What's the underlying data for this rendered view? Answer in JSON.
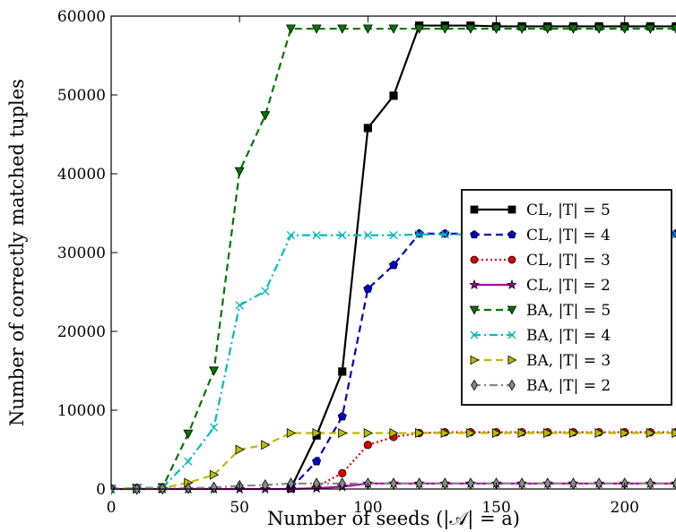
{
  "chart_data": {
    "type": "line",
    "title": "",
    "xlabel": "Number of seeds (|𝒜| = a)",
    "ylabel": "Number of correctly matched tuples",
    "xlim": [
      0,
      220
    ],
    "ylim": [
      0,
      60000
    ],
    "xticks": [
      0,
      50,
      100,
      150,
      200
    ],
    "yticks": [
      0,
      10000,
      20000,
      30000,
      40000,
      50000,
      60000
    ],
    "grid": false,
    "legend_position": "center-right",
    "series": [
      {
        "name": "CL, |T| = 5",
        "color": "#000000",
        "dash": "solid",
        "marker": "square",
        "points": [
          [
            70,
            100
          ],
          [
            80,
            6800
          ],
          [
            90,
            14900
          ],
          [
            100,
            45800
          ],
          [
            110,
            49900
          ],
          [
            120,
            58800
          ],
          [
            130,
            58800
          ],
          [
            140,
            58800
          ],
          [
            150,
            58700
          ],
          [
            160,
            58700
          ],
          [
            170,
            58700
          ],
          [
            180,
            58700
          ],
          [
            190,
            58700
          ],
          [
            200,
            58700
          ],
          [
            210,
            58700
          ],
          [
            220,
            58700
          ]
        ]
      },
      {
        "name": "CL, |T| = 4",
        "color": "#0000cc",
        "dash": "dashed",
        "marker": "pentagon",
        "points": [
          [
            70,
            100
          ],
          [
            80,
            3500
          ],
          [
            90,
            9200
          ],
          [
            100,
            25400
          ],
          [
            110,
            28400
          ],
          [
            120,
            32400
          ],
          [
            130,
            32400
          ],
          [
            140,
            32400
          ],
          [
            150,
            32400
          ],
          [
            160,
            32400
          ],
          [
            170,
            32400
          ],
          [
            180,
            32400
          ],
          [
            190,
            32400
          ],
          [
            200,
            32400
          ],
          [
            210,
            32400
          ],
          [
            220,
            32400
          ]
        ]
      },
      {
        "name": "CL, |T| = 3",
        "color": "#dd0000",
        "dash": "dotted",
        "marker": "circle",
        "points": [
          [
            80,
            300
          ],
          [
            90,
            2000
          ],
          [
            100,
            5600
          ],
          [
            110,
            6600
          ],
          [
            120,
            7100
          ],
          [
            130,
            7200
          ],
          [
            140,
            7200
          ],
          [
            150,
            7200
          ],
          [
            160,
            7200
          ],
          [
            170,
            7200
          ],
          [
            180,
            7200
          ],
          [
            190,
            7200
          ],
          [
            200,
            7200
          ],
          [
            210,
            7200
          ],
          [
            220,
            7200
          ]
        ]
      },
      {
        "name": "CL, |T| = 2",
        "color": "#aa00aa",
        "dash": "solid",
        "marker": "star",
        "points": [
          [
            0,
            0
          ],
          [
            10,
            0
          ],
          [
            20,
            0
          ],
          [
            30,
            0
          ],
          [
            40,
            0
          ],
          [
            50,
            0
          ],
          [
            60,
            0
          ],
          [
            70,
            0
          ],
          [
            80,
            100
          ],
          [
            90,
            300
          ],
          [
            100,
            700
          ],
          [
            110,
            700
          ],
          [
            120,
            700
          ],
          [
            130,
            700
          ],
          [
            140,
            700
          ],
          [
            150,
            700
          ],
          [
            160,
            700
          ],
          [
            170,
            700
          ],
          [
            180,
            700
          ],
          [
            190,
            700
          ],
          [
            200,
            700
          ],
          [
            210,
            700
          ],
          [
            220,
            700
          ]
        ]
      },
      {
        "name": "BA, |T| = 5",
        "color": "#007700",
        "dash": "dashed",
        "marker": "triangle-down",
        "points": [
          [
            0,
            0
          ],
          [
            10,
            100
          ],
          [
            20,
            200
          ],
          [
            30,
            7000
          ],
          [
            40,
            15000
          ],
          [
            50,
            40300
          ],
          [
            60,
            47400
          ],
          [
            70,
            58400
          ],
          [
            80,
            58400
          ],
          [
            90,
            58400
          ],
          [
            100,
            58400
          ],
          [
            110,
            58400
          ],
          [
            120,
            58400
          ],
          [
            130,
            58400
          ],
          [
            140,
            58400
          ],
          [
            150,
            58400
          ],
          [
            160,
            58400
          ],
          [
            170,
            58400
          ],
          [
            180,
            58400
          ],
          [
            190,
            58400
          ],
          [
            200,
            58400
          ],
          [
            210,
            58400
          ],
          [
            220,
            58400
          ]
        ]
      },
      {
        "name": "BA, |T| = 4",
        "color": "#00bbbb",
        "dash": "dashdot",
        "marker": "x",
        "points": [
          [
            0,
            0
          ],
          [
            10,
            100
          ],
          [
            20,
            200
          ],
          [
            30,
            3500
          ],
          [
            40,
            7800
          ],
          [
            50,
            23300
          ],
          [
            60,
            25100
          ],
          [
            70,
            32200
          ],
          [
            80,
            32200
          ],
          [
            90,
            32200
          ],
          [
            100,
            32200
          ],
          [
            110,
            32200
          ],
          [
            120,
            32300
          ],
          [
            130,
            32300
          ],
          [
            140,
            32300
          ],
          [
            150,
            32300
          ],
          [
            160,
            32300
          ],
          [
            170,
            32300
          ],
          [
            180,
            32300
          ],
          [
            190,
            32300
          ],
          [
            200,
            32300
          ],
          [
            210,
            32300
          ],
          [
            220,
            32300
          ]
        ]
      },
      {
        "name": "BA, |T| = 3",
        "color": "#bbbb00",
        "dash": "dashed",
        "marker": "triangle-right",
        "points": [
          [
            0,
            0
          ],
          [
            10,
            50
          ],
          [
            20,
            100
          ],
          [
            30,
            800
          ],
          [
            40,
            1800
          ],
          [
            50,
            5000
          ],
          [
            60,
            5600
          ],
          [
            70,
            7100
          ],
          [
            80,
            7100
          ],
          [
            90,
            7100
          ],
          [
            100,
            7100
          ],
          [
            110,
            7100
          ],
          [
            120,
            7100
          ],
          [
            130,
            7100
          ],
          [
            140,
            7100
          ],
          [
            150,
            7100
          ],
          [
            160,
            7100
          ],
          [
            170,
            7100
          ],
          [
            180,
            7100
          ],
          [
            190,
            7100
          ],
          [
            200,
            7100
          ],
          [
            210,
            7100
          ],
          [
            220,
            7100
          ]
        ]
      },
      {
        "name": "BA, |T| = 2",
        "color": "#888888",
        "dash": "dashdot",
        "marker": "diamond",
        "points": [
          [
            0,
            0
          ],
          [
            10,
            0
          ],
          [
            20,
            50
          ],
          [
            30,
            100
          ],
          [
            40,
            200
          ],
          [
            50,
            400
          ],
          [
            60,
            500
          ],
          [
            70,
            700
          ],
          [
            80,
            700
          ],
          [
            90,
            700
          ],
          [
            100,
            700
          ],
          [
            110,
            700
          ],
          [
            120,
            700
          ],
          [
            130,
            700
          ],
          [
            140,
            700
          ],
          [
            150,
            700
          ],
          [
            160,
            700
          ],
          [
            170,
            700
          ],
          [
            180,
            700
          ],
          [
            190,
            700
          ],
          [
            200,
            700
          ],
          [
            210,
            700
          ],
          [
            220,
            700
          ]
        ]
      }
    ]
  }
}
